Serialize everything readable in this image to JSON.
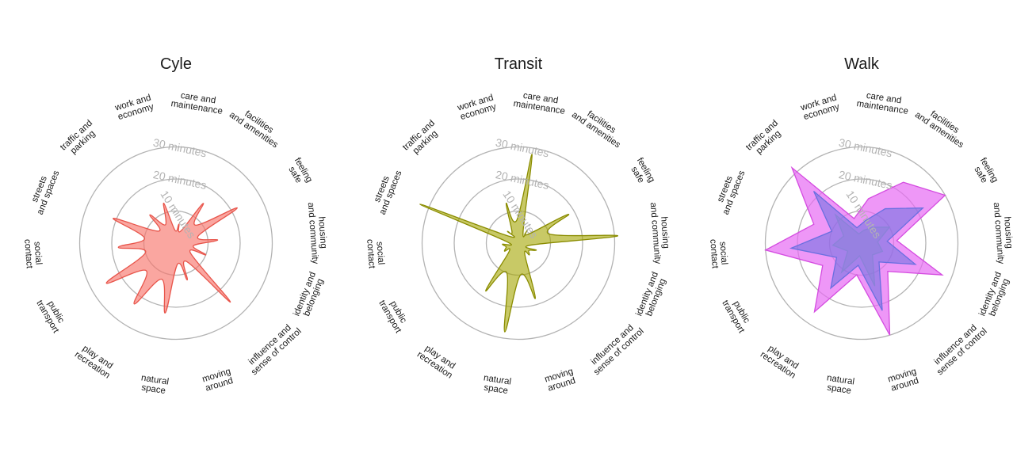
{
  "chart_data": [
    {
      "type": "radar",
      "title": "Cyle",
      "axis_ticks": [
        {
          "value": 10,
          "label": "10 minutes"
        },
        {
          "value": 20,
          "label": "20 minutes"
        },
        {
          "value": 30,
          "label": "30 minutes"
        }
      ],
      "categories": [
        [
          "work and",
          "economy"
        ],
        [
          "care and",
          "maintenance"
        ],
        [
          "facilities",
          "and amenities"
        ],
        [
          "feeling",
          "safe"
        ],
        [
          "housing",
          "and community"
        ],
        [
          "identity and",
          "belonging"
        ],
        [
          "influence and",
          "sense of control"
        ],
        [
          "moving",
          "around"
        ],
        [
          "natural",
          "space"
        ],
        [
          "play and",
          "recreation"
        ],
        [
          "public",
          "transport"
        ],
        [
          "social",
          "contact"
        ],
        [
          "streets",
          "and spaces"
        ],
        [
          "traffic and",
          "parking"
        ]
      ],
      "series": [
        {
          "values": [
            13,
            6,
            15,
            22,
            13,
            10,
            25,
            12,
            22,
            23,
            25,
            18,
            21,
            12
          ],
          "fill": "#f8766d",
          "stroke": "#e8554b",
          "opacity": 0.65
        }
      ]
    },
    {
      "type": "radar",
      "title": "Transit",
      "axis_ticks": [
        {
          "value": 10,
          "label": "10 minutes"
        },
        {
          "value": 20,
          "label": "20 minutes"
        },
        {
          "value": 30,
          "label": "30 minutes"
        }
      ],
      "categories": [
        [
          "work and",
          "economy"
        ],
        [
          "care and",
          "maintenance"
        ],
        [
          "facilities",
          "and amenities"
        ],
        [
          "feeling",
          "safe"
        ],
        [
          "housing",
          "and community"
        ],
        [
          "identity and",
          "belonging"
        ],
        [
          "influence and",
          "sense of control"
        ],
        [
          "moving",
          "around"
        ],
        [
          "natural",
          "space"
        ],
        [
          "play and",
          "recreation"
        ],
        [
          "public",
          "transport"
        ],
        [
          "social",
          "contact"
        ],
        [
          "streets",
          "and spaces"
        ],
        [
          "traffic and",
          "parking"
        ]
      ],
      "series": [
        {
          "values": [
            13,
            28,
            5,
            18,
            31,
            6,
            5,
            18,
            28,
            18,
            5,
            5,
            33,
            5
          ],
          "fill": "#a3a500",
          "stroke": "#8a8c00",
          "opacity": 0.6
        }
      ]
    },
    {
      "type": "radar",
      "title": "Walk",
      "axis_ticks": [
        {
          "value": 10,
          "label": "10 minutes"
        },
        {
          "value": 20,
          "label": "20 minutes"
        },
        {
          "value": 30,
          "label": "30 minutes"
        }
      ],
      "categories": [
        [
          "work and",
          "economy"
        ],
        [
          "care and",
          "maintenance"
        ],
        [
          "facilities",
          "and amenities"
        ],
        [
          "feeling",
          "safe"
        ],
        [
          "housing",
          "and community"
        ],
        [
          "identity and",
          "belonging"
        ],
        [
          "influence and",
          "sense of control"
        ],
        [
          "moving",
          "around"
        ],
        [
          "natural",
          "space"
        ],
        [
          "play and",
          "recreation"
        ],
        [
          "public",
          "transport"
        ],
        [
          "social",
          "contact"
        ],
        [
          "streets",
          "and spaces"
        ],
        [
          "traffic and",
          "parking"
        ]
      ],
      "series": [
        {
          "values": [
            8,
            14,
            23,
            30,
            11,
            27,
            12,
            30,
            10,
            26,
            14,
            30,
            16,
            32
          ],
          "fill": "#e76bf3",
          "stroke": "#d44be0",
          "opacity": 0.7
        },
        {
          "values": [
            5,
            7,
            13,
            22,
            8,
            18,
            8,
            22,
            7,
            17,
            9,
            22,
            10,
            22
          ],
          "fill": "#6a6fe0",
          "stroke": "#6a6fe0",
          "opacity": 0.55
        },
        {
          "values": [
            3,
            4,
            6,
            10,
            5,
            7,
            5,
            14,
            4,
            11,
            5,
            9,
            6,
            12
          ],
          "fill": "#8a82d8",
          "stroke": "#8a82d8",
          "opacity": 0.5
        }
      ]
    }
  ]
}
